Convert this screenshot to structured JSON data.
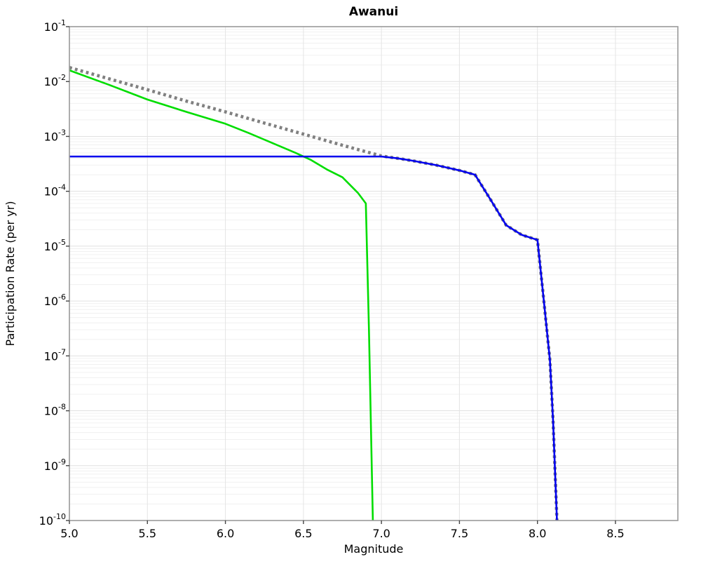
{
  "title": "Awanui",
  "colors": {
    "background": "#ffffff",
    "frame": "#999999",
    "grid_minor": "#f0f0f0",
    "grid_major": "#e0e0e0",
    "grid_vertical": "#e4e4e4",
    "tick": "#444444",
    "blue_line": "#0000ee",
    "green_line": "#00dd00",
    "gray_dotted": "#808080"
  },
  "chart_data": {
    "type": "line",
    "title": "Awanui",
    "xlabel": "Magnitude",
    "ylabel": "Participation Rate (per yr)",
    "x_scale": "linear",
    "y_scale": "log",
    "xlim": [
      5.0,
      8.9
    ],
    "ylim": [
      1e-10,
      0.1
    ],
    "grid": true,
    "legend": false,
    "x_ticks": [
      5.0,
      5.5,
      6.0,
      6.5,
      7.0,
      7.5,
      8.0,
      8.5
    ],
    "x_tick_labels": [
      "5.0",
      "5.5",
      "6.0",
      "6.5",
      "7.0",
      "7.5",
      "8.0",
      "8.5"
    ],
    "y_tick_exponents": [
      -1,
      -2,
      -3,
      -4,
      -5,
      -6,
      -7,
      -8,
      -9,
      -10
    ],
    "series": [
      {
        "name": "gr-dotted-rate",
        "color": "#808080",
        "style": "dotted",
        "points": [
          [
            5.0,
            0.018
          ],
          [
            5.25,
            0.0113
          ],
          [
            5.5,
            0.0071
          ],
          [
            5.75,
            0.0044
          ],
          [
            6.0,
            0.0028
          ],
          [
            6.25,
            0.00175
          ],
          [
            6.5,
            0.0011
          ],
          [
            6.75,
            0.00069
          ],
          [
            7.0,
            0.00044
          ],
          [
            7.1,
            0.0004
          ],
          [
            7.2,
            0.00036
          ],
          [
            7.35,
            0.0003
          ],
          [
            7.5,
            0.00024
          ],
          [
            7.6,
            0.0002
          ],
          [
            7.7,
            7e-05
          ],
          [
            7.8,
            2.4e-05
          ],
          [
            7.9,
            1.6e-05
          ],
          [
            8.0,
            1.3e-05
          ],
          [
            8.045,
            7.8e-07
          ],
          [
            8.08,
            8.3e-08
          ],
          [
            8.1,
            6.7e-09
          ],
          [
            8.125,
            1e-10
          ]
        ]
      },
      {
        "name": "green-rate-curve",
        "color": "#00dd00",
        "style": "solid",
        "points": [
          [
            5.0,
            0.016
          ],
          [
            5.25,
            0.0088
          ],
          [
            5.5,
            0.0047
          ],
          [
            5.75,
            0.0028
          ],
          [
            6.0,
            0.0017
          ],
          [
            6.15,
            0.00115
          ],
          [
            6.3,
            0.00076
          ],
          [
            6.45,
            0.0005
          ],
          [
            6.55,
            0.00037
          ],
          [
            6.65,
            0.00025
          ],
          [
            6.75,
            0.00018
          ],
          [
            6.85,
            9.3e-05
          ],
          [
            6.9,
            6e-05
          ],
          [
            6.92,
            3e-07
          ],
          [
            6.945,
            1e-10
          ]
        ]
      },
      {
        "name": "blue-rate-curve",
        "color": "#0000ee",
        "style": "solid",
        "points": [
          [
            5.0,
            0.00043
          ],
          [
            7.0,
            0.00043
          ],
          [
            7.1,
            0.0004
          ],
          [
            7.2,
            0.00036
          ],
          [
            7.35,
            0.0003
          ],
          [
            7.5,
            0.00024
          ],
          [
            7.6,
            0.0002
          ],
          [
            7.7,
            7e-05
          ],
          [
            7.8,
            2.4e-05
          ],
          [
            7.9,
            1.6e-05
          ],
          [
            8.0,
            1.3e-05
          ],
          [
            8.045,
            7.8e-07
          ],
          [
            8.08,
            8.3e-08
          ],
          [
            8.1,
            6.7e-09
          ],
          [
            8.125,
            1e-10
          ]
        ]
      }
    ]
  }
}
